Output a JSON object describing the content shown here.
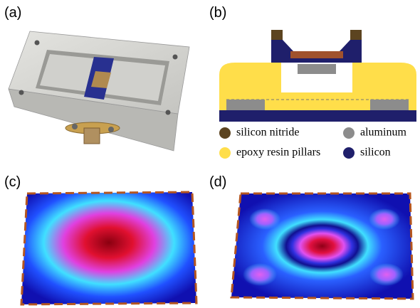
{
  "panels": [
    {
      "label": "(a)"
    },
    {
      "label": "(b)",
      "legend": [
        {
          "name": "silicon nitride",
          "color": "#5c4420"
        },
        {
          "name": "aluminum",
          "color": "#8c8c8c"
        },
        {
          "name": "epoxy resin pillars",
          "color": "#ffde4a"
        },
        {
          "name": "silicon",
          "color": "#1f1f6b"
        }
      ]
    },
    {
      "label": "(c)"
    },
    {
      "label": "(d)"
    }
  ]
}
